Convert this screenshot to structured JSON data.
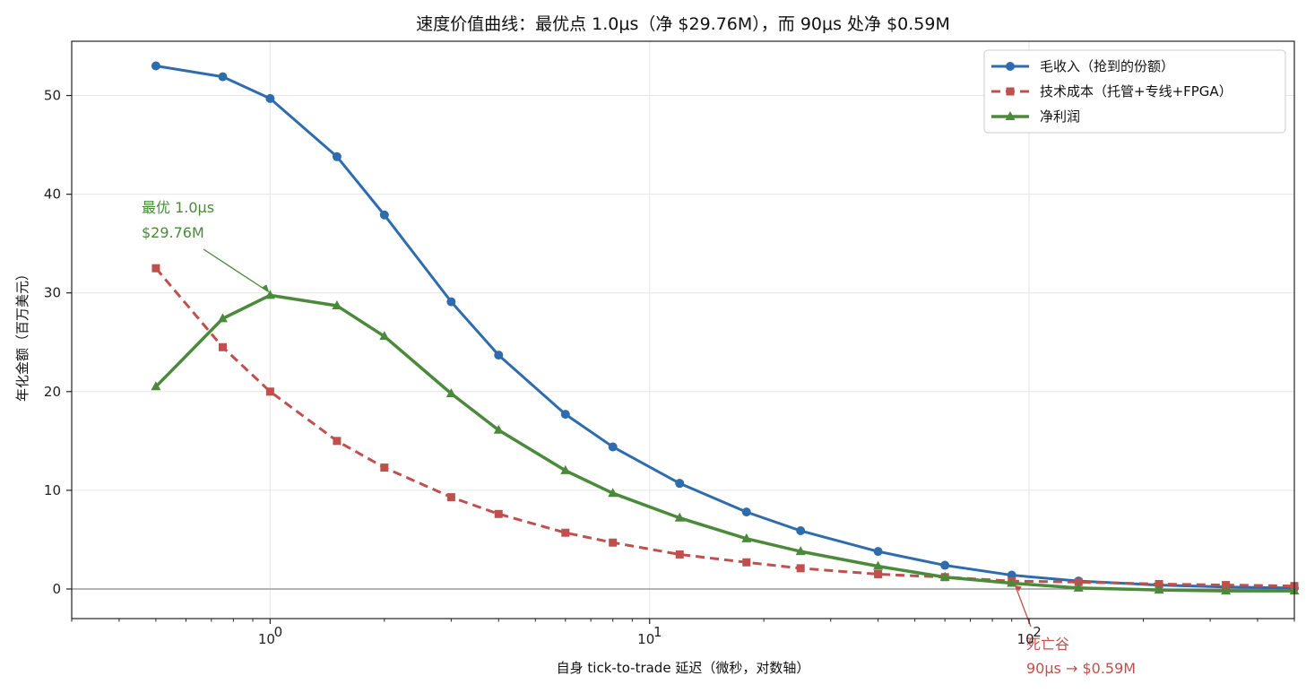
{
  "chart_data": {
    "type": "line",
    "title": "速度价值曲线：最优点 1.0μs（净 $29.76M），而 90μs 处净 $0.59M",
    "xlabel": "自身 tick-to-trade 延迟（微秒，对数轴）",
    "ylabel": "年化金额（百万美元）",
    "x_scale": "log",
    "xlim": [
      0.3,
      500
    ],
    "ylim": [
      -3,
      55.5
    ],
    "x_ticks": [
      {
        "value": 1,
        "base": "10",
        "exp": "0"
      },
      {
        "value": 10,
        "base": "10",
        "exp": "1"
      },
      {
        "value": 100,
        "base": "10",
        "exp": "2"
      }
    ],
    "y_ticks": [
      0,
      10,
      20,
      30,
      40,
      50
    ],
    "grid": true,
    "legend_position": "top-right",
    "x": [
      0.5,
      0.75,
      1.0,
      1.5,
      2,
      3,
      4,
      6,
      8,
      12,
      18,
      25,
      40,
      60,
      90,
      135,
      220,
      330,
      500
    ],
    "series": [
      {
        "name": "毛收入（抢到的份额）",
        "color": "#2e6cad",
        "marker": "circle",
        "dash": "solid",
        "values": [
          53.0,
          51.9,
          49.7,
          43.8,
          37.9,
          29.1,
          23.7,
          17.7,
          14.4,
          10.7,
          7.8,
          5.9,
          3.8,
          2.4,
          1.4,
          0.8,
          0.4,
          0.2,
          0.1
        ]
      },
      {
        "name": "技术成本（托管+专线+FPGA）",
        "color": "#c0504d",
        "marker": "square",
        "dash": "dashed",
        "values": [
          32.5,
          24.5,
          20.0,
          15.0,
          12.3,
          9.3,
          7.6,
          5.7,
          4.7,
          3.5,
          2.7,
          2.1,
          1.5,
          1.2,
          0.8,
          0.7,
          0.5,
          0.4,
          0.3
        ]
      },
      {
        "name": "净利润",
        "color": "#4a8a3a",
        "marker": "triangle",
        "dash": "solid",
        "values": [
          20.5,
          27.4,
          29.76,
          28.7,
          25.6,
          19.8,
          16.1,
          12.0,
          9.7,
          7.2,
          5.1,
          3.8,
          2.3,
          1.2,
          0.59,
          0.1,
          -0.1,
          -0.2,
          -0.2
        ]
      }
    ],
    "annotations": [
      {
        "line1": "最优 1.0μs",
        "line2": "$29.76M",
        "color": "#4a8a3a",
        "x": 1.0,
        "y": 29.76
      },
      {
        "line1": "死亡谷",
        "line2": "90μs → $0.59M",
        "color": "#c0504d",
        "x": 90,
        "y": 0.59
      }
    ]
  }
}
